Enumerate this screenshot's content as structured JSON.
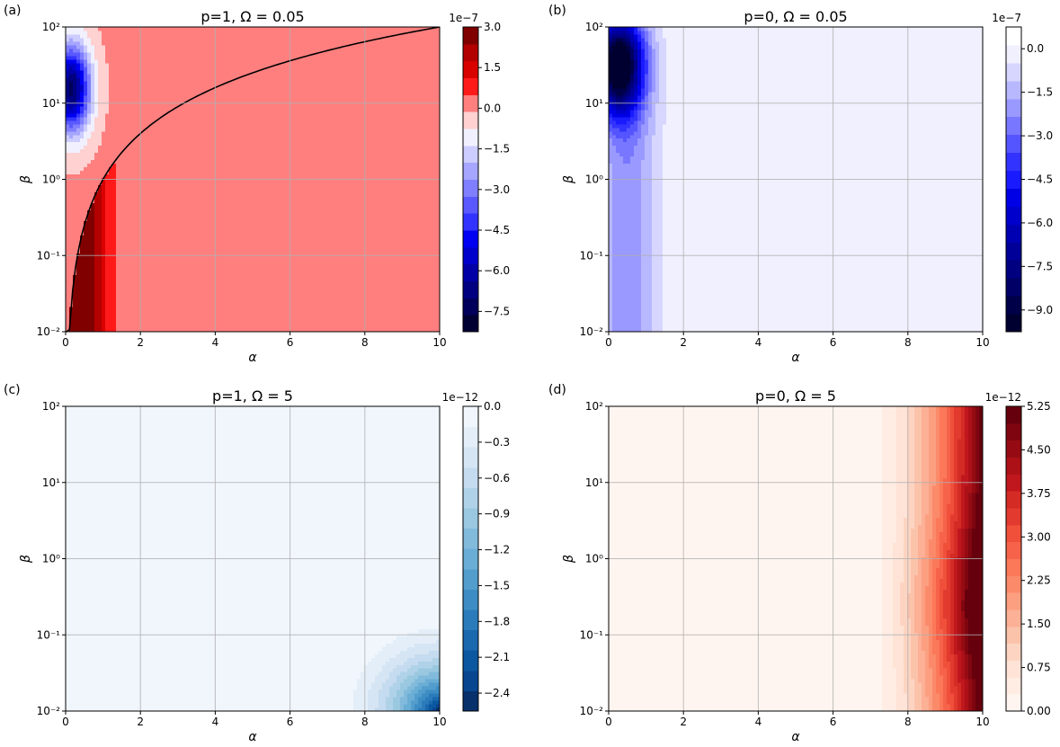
{
  "chart_data": [
    {
      "type": "heatmap",
      "panel_label": "(a)",
      "title": "p=1, Ω = 0.05",
      "xlabel": "α",
      "ylabel": "β",
      "xlim": [
        0,
        10
      ],
      "ylim": [
        0.01,
        100
      ],
      "yscale": "log",
      "grid": true,
      "x_ticks": [
        "0",
        "2",
        "4",
        "6",
        "8",
        "10"
      ],
      "y_ticks": [
        "10⁻²",
        "10⁻¹",
        "10⁰",
        "10¹",
        "10²"
      ],
      "colorbar": {
        "exponent_label": "1e−7",
        "min": -8.25,
        "max": 3.0,
        "tick_labels": [
          "3.0",
          "1.5",
          "0.0",
          "−1.5",
          "−3.0",
          "−4.5",
          "−6.0",
          "−7.5"
        ],
        "colors": [
          "#000033",
          "#00005a",
          "#000080",
          "#0000a6",
          "#0000cc",
          "#0000f2",
          "#3333ff",
          "#5959ff",
          "#7f7fff",
          "#a6a6ff",
          "#ccccff",
          "#f0f0ff",
          "#ffd1d1",
          "#ff7f7f",
          "#ff1a1a",
          "#d90000",
          "#b30000",
          "#800000"
        ],
        "colormap": "seismic"
      },
      "annotations": [
        "zero contour: black line, β rises from 10⁻² near α=0 to 10² at α=10"
      ]
    },
    {
      "type": "heatmap",
      "panel_label": "(b)",
      "title": "p=0, Ω = 0.05",
      "xlabel": "α",
      "ylabel": "β",
      "xlim": [
        0,
        10
      ],
      "ylim": [
        0.01,
        100
      ],
      "yscale": "log",
      "grid": true,
      "x_ticks": [
        "0",
        "2",
        "4",
        "6",
        "8",
        "10"
      ],
      "y_ticks": [
        "10⁻²",
        "10⁻¹",
        "10⁰",
        "10¹",
        "10²"
      ],
      "colorbar": {
        "exponent_label": "1e−7",
        "min": -9.75,
        "max": 0.75,
        "tick_labels": [
          "0.0",
          "−1.5",
          "−3.0",
          "−4.5",
          "−6.0",
          "−7.5",
          "−9.0"
        ],
        "colors": [
          "#000030",
          "#000048",
          "#000066",
          "#000080",
          "#000099",
          "#0000b3",
          "#0000cc",
          "#0000e6",
          "#1a1aff",
          "#3333ff",
          "#5555ff",
          "#7777ff",
          "#9999ff",
          "#b8b8ff",
          "#d6d6ff",
          "#f0f0ff",
          "#ffffff"
        ],
        "colormap": "seismic (negative half)"
      }
    },
    {
      "type": "heatmap",
      "panel_label": "(c)",
      "title": "p=1, Ω = 5",
      "xlabel": "α",
      "ylabel": "β",
      "xlim": [
        0,
        10
      ],
      "ylim": [
        0.01,
        100
      ],
      "yscale": "log",
      "grid": true,
      "x_ticks": [
        "0",
        "2",
        "4",
        "6",
        "8",
        "10"
      ],
      "y_ticks": [
        "10⁻²",
        "10⁻¹",
        "10⁰",
        "10¹",
        "10²"
      ],
      "colorbar": {
        "exponent_label": "1e−12",
        "min": -2.55,
        "max": 0.0,
        "tick_labels": [
          "0.0",
          "−0.3",
          "−0.6",
          "−0.9",
          "−1.2",
          "−1.5",
          "−1.8",
          "−2.1",
          "−2.4"
        ],
        "colors": [
          "#08306b",
          "#08468f",
          "#0b58a0",
          "#1a68ae",
          "#2b7bba",
          "#3d8dc4",
          "#529dcc",
          "#6aadd5",
          "#82badb",
          "#9ac8e0",
          "#b0d2e8",
          "#c5dbef",
          "#d5e5f4",
          "#e3eef8",
          "#f0f6fc"
        ],
        "colormap": "Blues_r"
      }
    },
    {
      "type": "heatmap",
      "panel_label": "(d)",
      "title": "p=0, Ω = 5",
      "xlabel": "α",
      "ylabel": "β",
      "xlim": [
        0,
        10
      ],
      "ylim": [
        0.01,
        100
      ],
      "yscale": "log",
      "grid": true,
      "x_ticks": [
        "0",
        "2",
        "4",
        "6",
        "8",
        "10"
      ],
      "y_ticks": [
        "10⁻²",
        "10⁻¹",
        "10⁰",
        "10¹",
        "10²"
      ],
      "colorbar": {
        "exponent_label": "1e−12",
        "min": 0.0,
        "max": 5.25,
        "tick_labels": [
          "5.25",
          "4.50",
          "3.75",
          "3.00",
          "2.25",
          "1.50",
          "0.75",
          "0.00"
        ],
        "colors": [
          "#fff5f0",
          "#ffece3",
          "#fee3d6",
          "#fdd4c2",
          "#fcc3ab",
          "#fcb095",
          "#fc9f81",
          "#fb8a6a",
          "#fb7858",
          "#f6634a",
          "#f0503a",
          "#e23a2f",
          "#d42b25",
          "#c0171e",
          "#ac1117",
          "#960b13",
          "#7f0610",
          "#67000d"
        ],
        "colormap": "Reds"
      }
    }
  ]
}
